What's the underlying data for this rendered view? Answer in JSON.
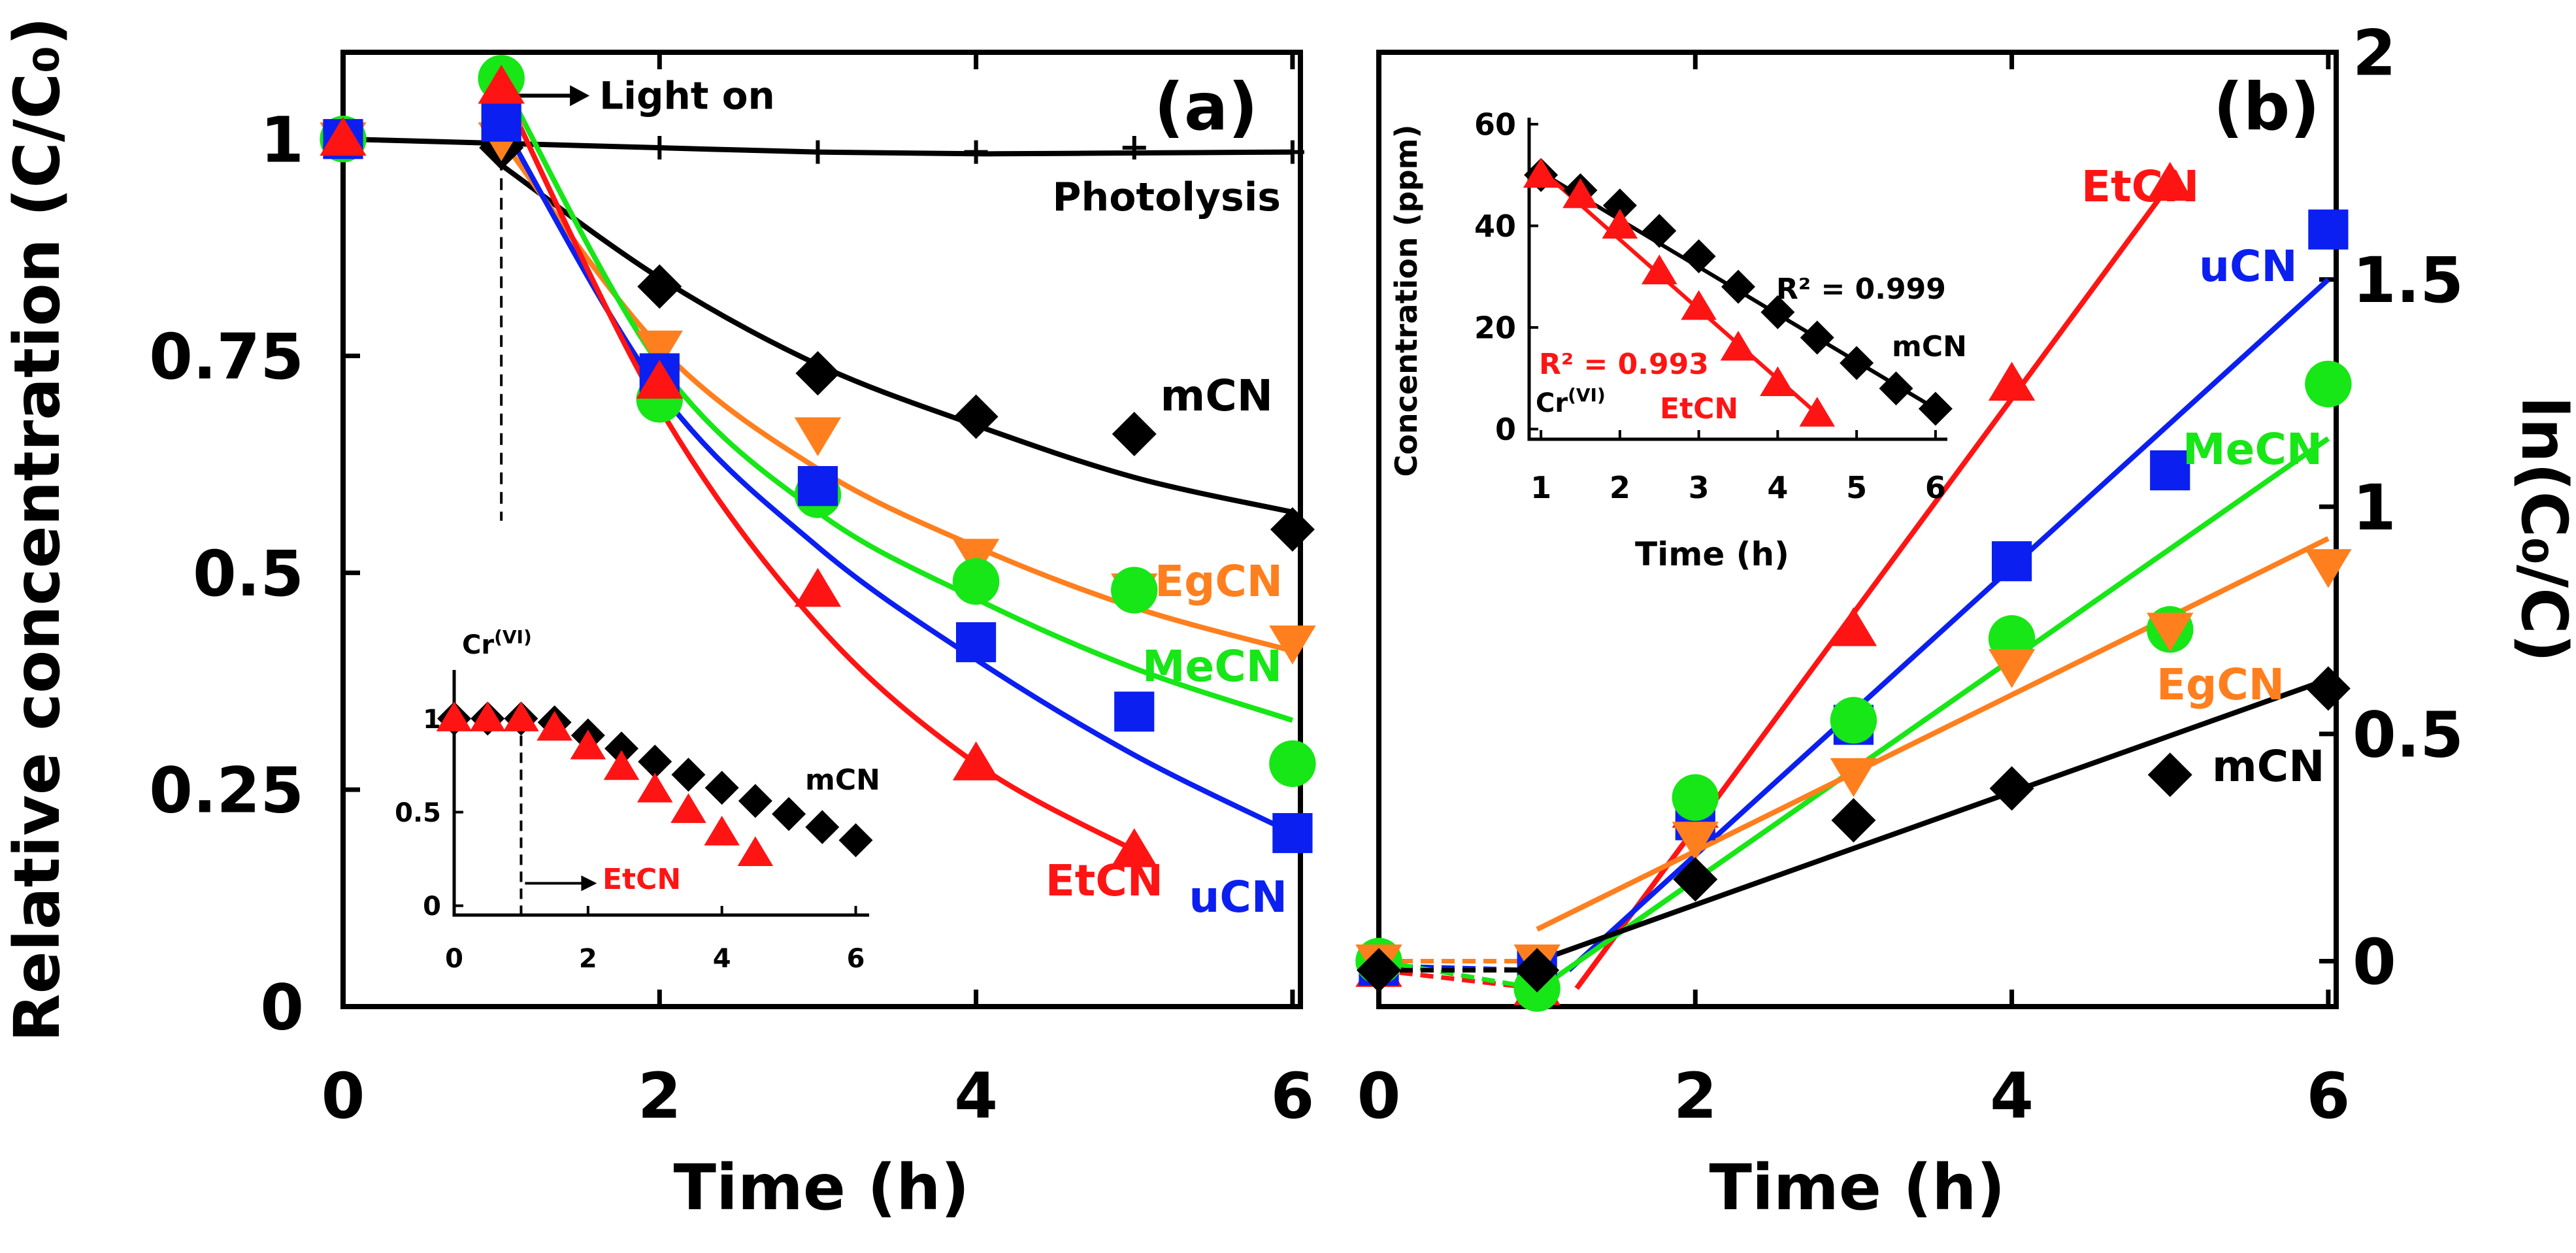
{
  "colors": {
    "uCN": "#0b1ff0",
    "mCN": "#000000",
    "MeCN": "#17e617",
    "EgCN": "#ff7f1e",
    "EtCN": "#ff1414",
    "Photolysis": "#000000"
  },
  "chart_data": [
    {
      "id": "a",
      "type": "scatter",
      "panel_label": "(a)",
      "xlabel": "Time (h)",
      "ylabel": "Relative concentration (C/C₀)",
      "xlim": [
        0,
        6.05
      ],
      "ylim": [
        0,
        1.1
      ],
      "xticks": [
        0,
        2,
        4,
        6
      ],
      "yticks": [
        0,
        0.25,
        0.5,
        0.75,
        1
      ],
      "xtick_labels": [
        "0",
        "2",
        "4",
        "6"
      ],
      "ytick_labels": [
        "0",
        "0.25",
        "0.5",
        "0.75",
        "1"
      ],
      "annotations": [
        {
          "text": "Light on",
          "x": 1.0,
          "y": 1.05
        }
      ],
      "light_on_x": 1.0,
      "series": [
        {
          "name": "Photolysis",
          "label": "Photolysis",
          "marker": "plus",
          "x": [
            0,
            1,
            2,
            3,
            4,
            5,
            6
          ],
          "y": [
            1.0,
            0.99,
            0.99,
            0.985,
            0.985,
            0.99,
            0.985
          ],
          "fit": {
            "x": [
              0,
              1,
              2,
              3,
              4,
              5,
              6
            ],
            "y": [
              1.0,
              0.995,
              0.99,
              0.985,
              0.983,
              0.984,
              0.985
            ]
          }
        },
        {
          "name": "mCN",
          "label": "mCN",
          "marker": "diamond",
          "x": [
            0,
            1,
            2,
            3,
            4,
            5,
            6
          ],
          "y": [
            1.0,
            0.99,
            0.83,
            0.73,
            0.68,
            0.66,
            0.55
          ],
          "fit": {
            "x": [
              1,
              2,
              3,
              4,
              5,
              6
            ],
            "y": [
              0.97,
              0.84,
              0.74,
              0.67,
              0.61,
              0.57
            ]
          }
        },
        {
          "name": "EgCN",
          "label": "EgCN",
          "marker": "triangle-down",
          "x": [
            0,
            1,
            2,
            3,
            4,
            5,
            6
          ],
          "y": [
            1.0,
            1.0,
            0.76,
            0.66,
            0.52,
            0.48,
            0.42
          ],
          "fit": {
            "x": [
              1,
              2,
              3,
              4,
              5,
              6
            ],
            "y": [
              1.0,
              0.76,
              0.62,
              0.53,
              0.46,
              0.41
            ]
          }
        },
        {
          "name": "MeCN",
          "label": "MeCN",
          "marker": "circle",
          "x": [
            0,
            1,
            2,
            3,
            4,
            5,
            6
          ],
          "y": [
            1.0,
            1.07,
            0.7,
            0.59,
            0.49,
            0.48,
            0.28
          ],
          "fit": {
            "x": [
              1,
              2,
              3,
              4,
              5,
              6
            ],
            "y": [
              1.07,
              0.74,
              0.57,
              0.47,
              0.39,
              0.33
            ]
          }
        },
        {
          "name": "uCN",
          "label": "uCN",
          "marker": "square",
          "x": [
            0,
            1,
            2,
            3,
            4,
            5,
            6
          ],
          "y": [
            1.0,
            1.02,
            0.73,
            0.6,
            0.42,
            0.34,
            0.2
          ],
          "fit": {
            "x": [
              1,
              2,
              3,
              4,
              5,
              6
            ],
            "y": [
              1.02,
              0.71,
              0.53,
              0.4,
              0.29,
              0.2
            ]
          }
        },
        {
          "name": "EtCN",
          "label": "EtCN",
          "marker": "triangle-up",
          "x": [
            0,
            1,
            2,
            3,
            4,
            5
          ],
          "y": [
            1.0,
            1.06,
            0.72,
            0.48,
            0.28,
            0.18
          ],
          "fit": {
            "x": [
              1,
              2,
              3,
              4,
              5
            ],
            "y": [
              1.06,
              0.69,
              0.44,
              0.28,
              0.18
            ]
          }
        }
      ],
      "inset": {
        "xlim": [
          0,
          6.2
        ],
        "ylim": [
          -0.05,
          1.12
        ],
        "xticks": [
          0,
          2,
          4,
          6
        ],
        "yticks": [
          0,
          0.5,
          1
        ],
        "xtick_labels": [
          "0",
          "2",
          "4",
          "6"
        ],
        "ytick_labels": [
          "0",
          "0.5",
          "1"
        ],
        "species_label": "Cr",
        "species_sup": "(VI)",
        "dashed_x": 1.0,
        "series": [
          {
            "name": "mCN",
            "label": "mCN",
            "marker": "diamond",
            "x": [
              0,
              0.5,
              1,
              1.5,
              2,
              2.5,
              3,
              3.5,
              4,
              4.5,
              5,
              5.5,
              6
            ],
            "y": [
              1.0,
              1.0,
              1.0,
              0.98,
              0.91,
              0.84,
              0.77,
              0.7,
              0.63,
              0.56,
              0.49,
              0.42,
              0.35
            ]
          },
          {
            "name": "EtCN",
            "label": "EtCN",
            "marker": "triangle-up",
            "x": [
              0,
              0.5,
              1,
              1.5,
              2,
              2.5,
              3,
              3.5,
              4,
              4.5
            ],
            "y": [
              1.0,
              1.0,
              1.0,
              0.95,
              0.85,
              0.74,
              0.62,
              0.51,
              0.39,
              0.28
            ]
          }
        ]
      }
    },
    {
      "id": "b",
      "type": "scatter",
      "panel_label": "(b)",
      "xlabel": "Time (h)",
      "ylabel": "ln(C₀/C)",
      "xlim": [
        0,
        6.05
      ],
      "ylim": [
        -0.1,
        2.0
      ],
      "xticks": [
        0,
        2,
        4,
        6
      ],
      "yticks": [
        0,
        0.5,
        1,
        1.5,
        2
      ],
      "xtick_labels": [
        "0",
        "2",
        "4",
        "6"
      ],
      "ytick_labels": [
        "0",
        "0.5",
        "1",
        "1.5",
        "2"
      ],
      "series": [
        {
          "name": "EtCN",
          "label": "EtCN",
          "marker": "triangle-up",
          "x": [
            0,
            1,
            2,
            3,
            4,
            5
          ],
          "y": [
            -0.02,
            -0.06,
            0.33,
            0.73,
            1.27,
            1.71
          ],
          "fit": {
            "x": [
              1.25,
              5
            ],
            "y": [
              -0.06,
              1.71
            ]
          }
        },
        {
          "name": "uCN",
          "label": "uCN",
          "marker": "square",
          "x": [
            0,
            1,
            2,
            3,
            4,
            5,
            6
          ],
          "y": [
            -0.01,
            -0.02,
            0.31,
            0.52,
            0.88,
            1.08,
            1.61
          ],
          "fit": {
            "x": [
              1.2,
              6
            ],
            "y": [
              -0.02,
              1.5
            ]
          }
        },
        {
          "name": "MeCN",
          "label": "MeCN",
          "marker": "circle",
          "x": [
            0,
            1,
            2,
            3,
            4,
            5,
            6
          ],
          "y": [
            0.0,
            -0.06,
            0.36,
            0.53,
            0.71,
            0.73,
            1.27
          ],
          "fit": {
            "x": [
              1.1,
              6
            ],
            "y": [
              -0.04,
              1.15
            ]
          }
        },
        {
          "name": "EgCN",
          "label": "EgCN",
          "marker": "triangle-down",
          "x": [
            0,
            1,
            2,
            3,
            4,
            5,
            6
          ],
          "y": [
            0.0,
            0.0,
            0.27,
            0.41,
            0.65,
            0.73,
            0.87
          ],
          "fit": {
            "x": [
              1,
              6
            ],
            "y": [
              0.07,
              0.93
            ]
          }
        },
        {
          "name": "mCN",
          "label": "mCN",
          "marker": "diamond",
          "x": [
            0,
            1,
            2,
            3,
            4,
            5,
            6
          ],
          "y": [
            -0.02,
            -0.02,
            0.18,
            0.31,
            0.38,
            0.41,
            0.6
          ],
          "fit": {
            "x": [
              1,
              6
            ],
            "y": [
              0.0,
              0.62
            ]
          }
        }
      ],
      "inset": {
        "xlabel": "Time (h)",
        "ylabel": "Concentration (ppm)",
        "xlim": [
          0.85,
          6.15
        ],
        "ylim": [
          -2,
          60
        ],
        "xticks": [
          1,
          2,
          3,
          4,
          5,
          6
        ],
        "yticks": [
          0,
          20,
          40,
          60
        ],
        "xtick_labels": [
          "1",
          "2",
          "3",
          "4",
          "5",
          "6"
        ],
        "ytick_labels": [
          "0",
          "20",
          "40",
          "60"
        ],
        "species_label": "Cr",
        "species_sup": "(VI)",
        "series": [
          {
            "name": "mCN",
            "label": "mCN",
            "marker": "diamond",
            "r2": "R² = 0.999",
            "x": [
              1,
              1.5,
              2,
              2.5,
              3,
              3.5,
              4,
              4.5,
              5,
              5.5,
              6
            ],
            "y": [
              50,
              47,
              44,
              39,
              34,
              28,
              23,
              18,
              13,
              8,
              4
            ],
            "fit": {
              "x": [
                1,
                6
              ],
              "y": [
                50.5,
                4
              ]
            }
          },
          {
            "name": "EtCN",
            "label": "EtCN",
            "marker": "triangle-up",
            "r2": "R² = 0.993",
            "x": [
              1,
              1.5,
              2,
              2.5,
              3,
              3.5,
              4,
              4.5
            ],
            "y": [
              50,
              46,
              40,
              31,
              24,
              16,
              9,
              3
            ],
            "fit": {
              "x": [
                1,
                4.5
              ],
              "y": [
                51,
                3
              ]
            }
          }
        ]
      }
    }
  ]
}
